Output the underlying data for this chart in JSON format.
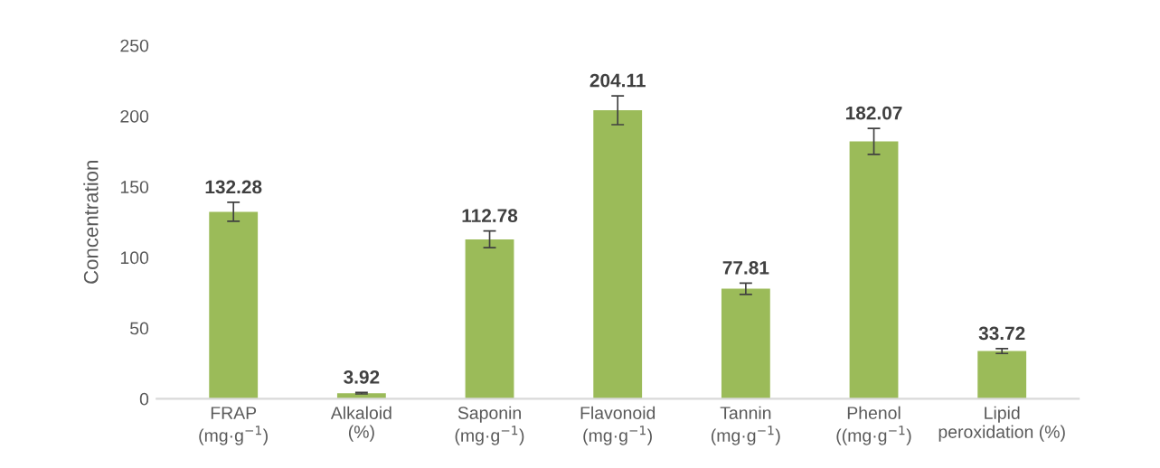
{
  "chart_data": {
    "type": "bar",
    "ylabel": "Concentration",
    "categories": [
      "FRAP\n(mg·g$^{−1}$)",
      "Alkaloid\n(%)",
      "Saponin\n(mg·g$^{−1}$)",
      "Flavonoid\n(mg·g$^{−1}$)",
      "Tannin\n(mg·g$^{−1}$)",
      "Phenol\n((mg·g$^{−1}$)",
      "Lipid\nperoxidation (%)"
    ],
    "values": [
      132.28,
      3.92,
      112.78,
      204.11,
      77.81,
      182.07,
      33.72
    ],
    "errors": [
      6.7,
      0.5,
      5.9,
      10.2,
      4,
      9.2,
      1.7
    ],
    "color": "#9bbb59",
    "data_labels": true,
    "grid": false,
    "legend": false,
    "ylim": [
      0,
      250
    ],
    "yticks": [
      0,
      50,
      100,
      150,
      200,
      250
    ]
  }
}
